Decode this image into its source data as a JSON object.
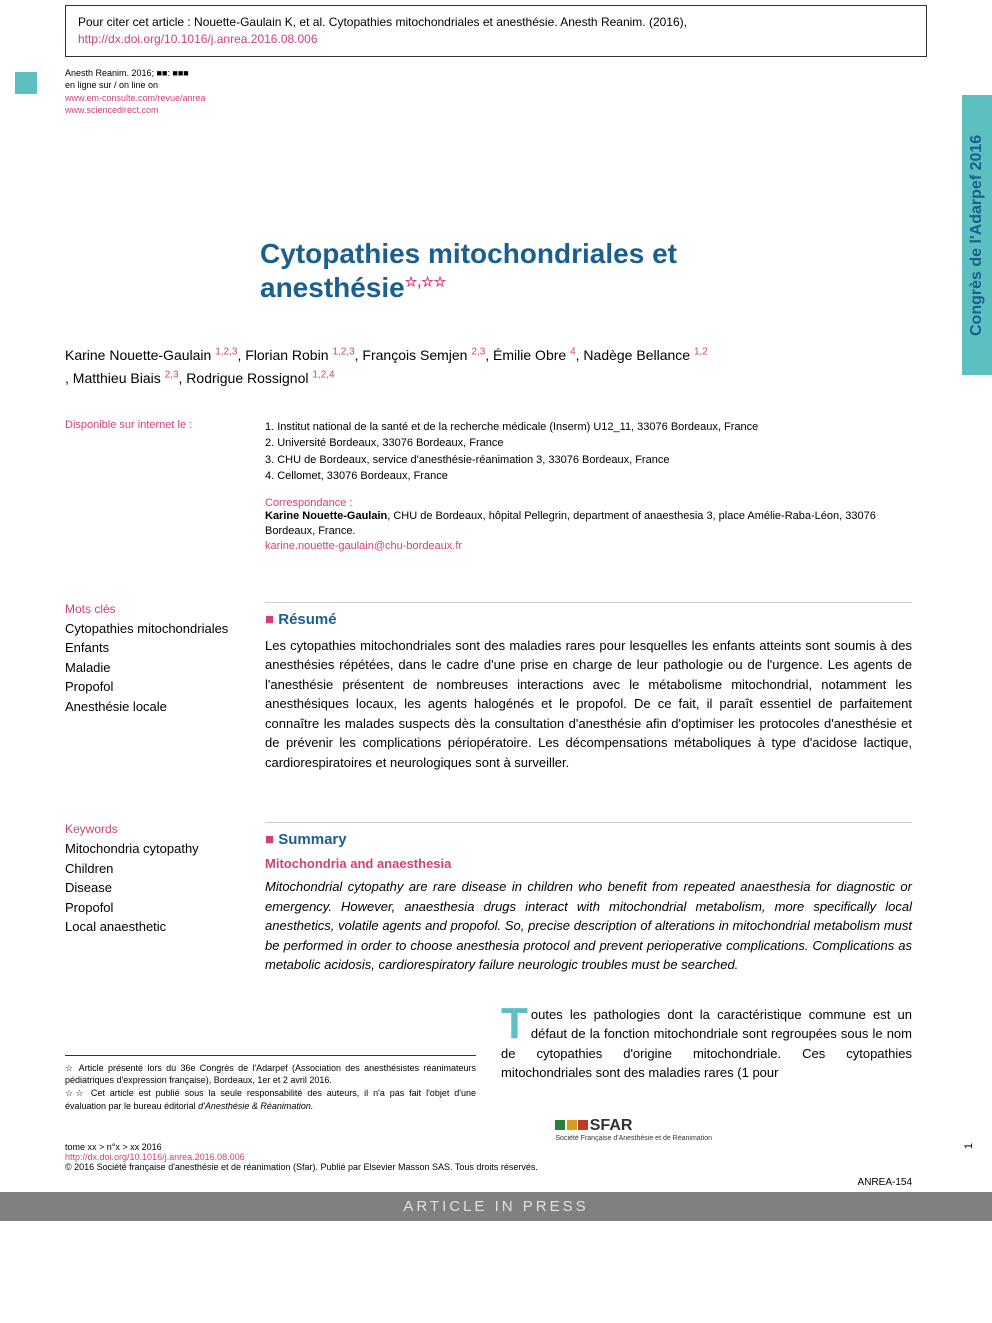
{
  "citation": {
    "prefix": "Pour citer cet article : Nouette-Gaulain K, et al. Cytopathies mitochondriales et anesthésie. Anesth Reanim. (2016), ",
    "doi_url": "http://dx.doi.org/10.1016/j.anrea.2016.08.006"
  },
  "header_meta": {
    "journal_ref": "Anesth Reanim. 2016; ■■: ■■■",
    "online_label": "en ligne sur / on line on",
    "link1": "www.em-consulte.com/revue/anrea",
    "link2": "www.sciencedirect.com"
  },
  "side_label": "Congrès de l'Adarpef 2016",
  "title": {
    "line1": "Cytopathies mitochondriales et",
    "line2": "anesthésie"
  },
  "authors_html": [
    {
      "name": "Karine Nouette-Gaulain ",
      "sup": "1,2,3"
    },
    {
      "name": ", Florian Robin ",
      "sup": "1,2,3"
    },
    {
      "name": ", François Semjen ",
      "sup": "2,3"
    },
    {
      "name": ", Émilie Obre ",
      "sup": "4"
    },
    {
      "name": ", Nadège Bellance ",
      "sup": "1,2"
    },
    {
      "name": ", Matthieu Biais ",
      "sup": "2,3"
    },
    {
      "name": ", Rodrigue Rossignol ",
      "sup": "1,2,4"
    }
  ],
  "availability_label": "Disponible sur internet le :",
  "affiliations": [
    "1. Institut national de la santé et de la recherche médicale (Inserm) U12_11, 33076 Bordeaux, France",
    "2. Université Bordeaux, 33076 Bordeaux, France",
    "3. CHU de Bordeaux, service d'anesthésie-réanimation 3, 33076 Bordeaux, France",
    "4. Cellomet, 33076 Bordeaux, France"
  ],
  "correspondence": {
    "label": "Correspondance :",
    "name": "Karine Nouette-Gaulain",
    "text": ", CHU de Bordeaux, hôpital Pellegrin, department of anaesthesia 3, place Amélie-Raba-Léon, 33076 Bordeaux, France.",
    "email": "karine.nouette-gaulain@chu-bordeaux.fr"
  },
  "mots_cles": {
    "label": "Mots clés",
    "items": [
      "Cytopathies mitochondriales",
      "Enfants",
      "Maladie",
      "Propofol",
      "Anesthésie locale"
    ]
  },
  "resume": {
    "header": "Résumé",
    "text": "Les cytopathies mitochondriales sont des maladies rares pour lesquelles les enfants atteints sont soumis à des anesthésies répétées, dans le cadre d'une prise en charge de leur pathologie ou de l'urgence. Les agents de l'anesthésie présentent de nombreuses interactions avec le métabolisme mitochondrial, notamment les anesthésiques locaux, les agents halogénés et le propofol. De ce fait, il paraît essentiel de parfaitement connaître les malades suspects dès la consultation d'anesthésie afin d'optimiser les protocoles d'anesthésie et de prévenir les complications périopératoire. Les décompensations métaboliques à type d'acidose lactique, cardiorespiratoires et neurologiques sont à surveiller."
  },
  "keywords": {
    "label": "Keywords",
    "items": [
      "Mitochondria cytopathy",
      "Children",
      "Disease",
      "Propofol",
      "Local anaesthetic"
    ]
  },
  "summary": {
    "header": "Summary",
    "subtitle": "Mitochondria and anaesthesia",
    "text": "Mitochondrial cytopathy are rare disease in children who benefit from repeated anaesthesia for diagnostic or emergency. However, anaesthesia drugs interact with mitochondrial metabolism, more specifically local anesthetics, volatile agents and propofol. So, precise description of alterations in mitochondrial metabolism must be performed in order to choose anesthesia protocol and prevent perioperative complications. Complications as metabolic acidosis, cardiorespiratory failure neurologic troubles must be searched."
  },
  "footnotes": {
    "note1_star": "☆",
    "note1": " Article présenté lors du 36e Congrès de l'Adarpef (Association des anesthésistes réanimateurs pédiatriques d'expression française), Bordeaux, 1er et 2 avril 2016.",
    "note2_star": "☆☆",
    "note2": " Cet article est publié sous la seule responsabilité des auteurs, il n'a pas fait l'objet d'une évaluation par le bureau éditorial ",
    "note2_italic": "d'Anesthésie & Réanimation."
  },
  "body_text": {
    "drop": "T",
    "text": "outes les pathologies dont la caractéristique commune est un défaut de la fonction mitochondriale sont regroupées sous le nom de cytopathies d'origine mitochondriale. Ces cytopathies mitochondriales sont des maladies rares (1 pour"
  },
  "footer": {
    "line1": "tome xx > n°x > xx 2016",
    "doi": "http://dx.doi.org/10.1016/j.anrea.2016.08.006",
    "copyright": "© 2016 Société française d'anesthésie et de réanimation (Sfar). Publié par Elsevier Masson SAS. Tous droits réservés.",
    "logo_text": "SFAR",
    "logo_sub": "Société Française d'Anesthésie et de Réanimation"
  },
  "page_num": "1",
  "press_label": "ARTICLE IN PRESS",
  "press_id": "ANREA-154",
  "colors": {
    "teal": "#5cbfc0",
    "pink": "#d13f7a",
    "blue": "#1a5f8f"
  }
}
